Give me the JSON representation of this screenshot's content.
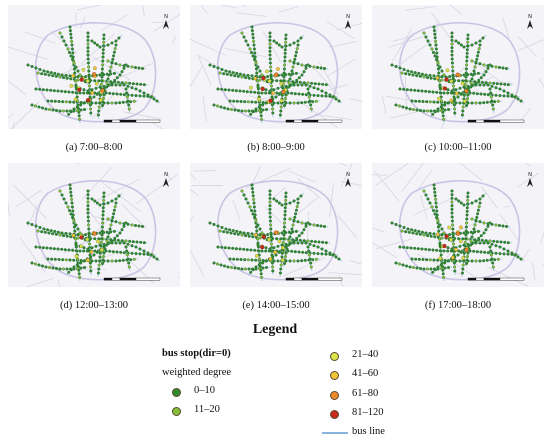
{
  "panels": [
    {
      "caption": "(a) 7:00–8:00",
      "hot": 5,
      "warm": 14
    },
    {
      "caption": "(b) 8:00–9:00",
      "hot": 5,
      "warm": 14
    },
    {
      "caption": "(c) 10:00–11:00",
      "hot": 4,
      "warm": 12
    },
    {
      "caption": "(d) 12:00–13:00",
      "hot": 2,
      "warm": 10
    },
    {
      "caption": "(e) 14:00–15:00",
      "hot": 3,
      "warm": 11
    },
    {
      "caption": "(f) 17:00–18:00",
      "hot": 4,
      "warm": 13
    }
  ],
  "legend": {
    "title": "Legend",
    "subtitle": "bus stop(dir=0)",
    "metric": "weighted degree",
    "classes": [
      {
        "label": "0–10",
        "color": "#2f8a2f"
      },
      {
        "label": "11–20",
        "color": "#86bf3a"
      },
      {
        "label": "21–40",
        "color": "#d9e34a"
      },
      {
        "label": "41–60",
        "color": "#f2c43a"
      },
      {
        "label": "61–80",
        "color": "#ee8a2e"
      },
      {
        "label": "81–120",
        "color": "#c82a1c"
      }
    ],
    "line_label": "bus line",
    "line_color": "#8ab4e0"
  },
  "map": {
    "north_label": "N",
    "background": "#f4f3f8",
    "road_color": "#d7d6e2",
    "ring_color": "#c9c4e4",
    "bus_line_color": "#9cc2e8"
  }
}
